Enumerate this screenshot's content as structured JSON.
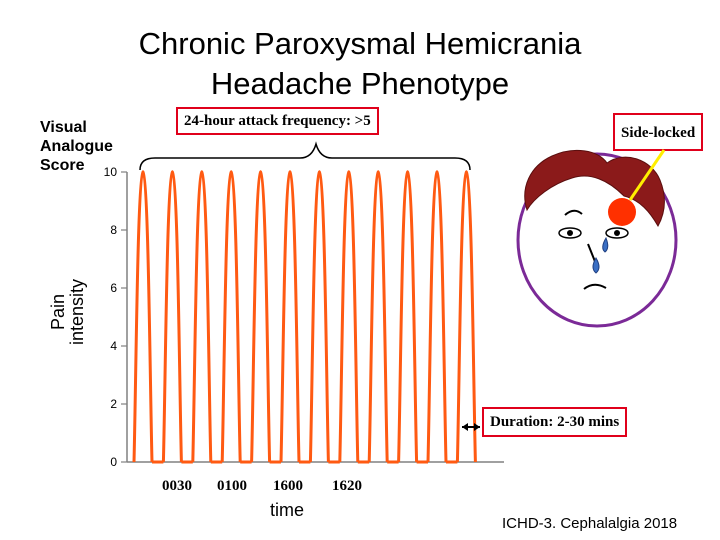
{
  "title_line1": "Chronic Paroxysmal Hemicrania",
  "title_line2": "Headache Phenotype",
  "vas_label": [
    "Visual",
    "Analogue",
    "Score"
  ],
  "annotations": {
    "frequency": "24-hour attack frequency: >5",
    "side": "Side-locked",
    "duration": "Duration: 2-30 mins"
  },
  "citation": "ICHD-3. Cephalalgia 2018",
  "colors": {
    "series": "#ff5a12",
    "box_border": "#e0001b",
    "face_outline": "#7b2a97",
    "hair": "#8b1a1a",
    "pain_spot": "#ff3000",
    "pointer": "#ffee00",
    "tear": "#3a6fc4"
  },
  "chart_data": {
    "type": "line",
    "ylabel": "Pain intensity",
    "xlabel": "time",
    "ylim": [
      0,
      10
    ],
    "y_ticks": [
      0,
      2,
      4,
      6,
      8,
      10
    ],
    "x_tick_labels": [
      "0030",
      "0100",
      "1600",
      "1620"
    ],
    "peaks": 12,
    "peak_value": 10,
    "baseline_value": 0,
    "grid": false,
    "legend": "none"
  }
}
